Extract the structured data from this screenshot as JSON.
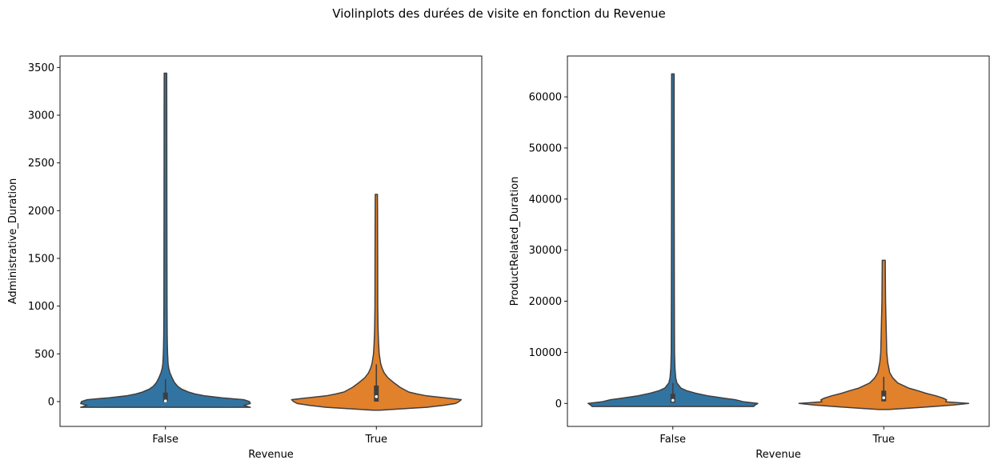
{
  "figure": {
    "suptitle": "Violinplots des durées de visite en fonction du Revenue"
  },
  "chart_data": [
    {
      "type": "violin",
      "xlabel": "Revenue",
      "ylabel": "Administrative_Duration",
      "categories": [
        "False",
        "True"
      ],
      "colors": [
        "#3274a1",
        "#e1812c"
      ],
      "ylim": [
        -260,
        3620
      ],
      "yticks": [
        0,
        500,
        1000,
        1500,
        2000,
        2500,
        3000,
        3500
      ],
      "violins": [
        {
          "category": "False",
          "min": -60,
          "max": 3440,
          "q1": 0,
          "median": 7,
          "q3": 94,
          "whisker_high": 235,
          "profile": [
            [
              -60,
              104
            ],
            [
              -40,
              96
            ],
            [
              -20,
              104
            ],
            [
              0,
              103
            ],
            [
              20,
              96
            ],
            [
              40,
              69
            ],
            [
              60,
              48
            ],
            [
              80,
              36
            ],
            [
              100,
              28
            ],
            [
              130,
              20
            ],
            [
              160,
              15
            ],
            [
              200,
              11
            ],
            [
              250,
              8
            ],
            [
              300,
              5.5
            ],
            [
              350,
              4
            ],
            [
              400,
              3.2
            ],
            [
              500,
              2.6
            ],
            [
              600,
              2.3
            ],
            [
              700,
              2.1
            ],
            [
              1000,
              1.9
            ],
            [
              2000,
              1.7
            ],
            [
              3000,
              1.6
            ],
            [
              3440,
              1.5
            ]
          ]
        },
        {
          "category": "True",
          "min": -90,
          "max": 2170,
          "q1": 0,
          "median": 52,
          "q3": 168,
          "whisker_high": 390,
          "profile": [
            [
              -90,
              5
            ],
            [
              -80,
              27
            ],
            [
              -60,
              70
            ],
            [
              -40,
              93
            ],
            [
              -20,
              110
            ],
            [
              0,
              115
            ],
            [
              20,
              118
            ],
            [
              40,
              95
            ],
            [
              60,
              70
            ],
            [
              80,
              56
            ],
            [
              100,
              45
            ],
            [
              150,
              33
            ],
            [
              200,
              24
            ],
            [
              250,
              16
            ],
            [
              300,
              11
            ],
            [
              350,
              8
            ],
            [
              400,
              6
            ],
            [
              500,
              4
            ],
            [
              600,
              3.2
            ],
            [
              700,
              2.6
            ],
            [
              800,
              2.3
            ],
            [
              1000,
              2
            ],
            [
              1500,
              1.8
            ],
            [
              2000,
              1.6
            ],
            [
              2170,
              1.5
            ]
          ]
        }
      ]
    },
    {
      "type": "violin",
      "xlabel": "Revenue",
      "ylabel": "ProductRelated_Duration",
      "categories": [
        "False",
        "True"
      ],
      "colors": [
        "#3274a1",
        "#e1812c"
      ],
      "ylim": [
        -4500,
        68000
      ],
      "yticks": [
        0,
        10000,
        20000,
        30000,
        40000,
        50000,
        60000
      ],
      "violins": [
        {
          "category": "False",
          "min": -600,
          "max": 64500,
          "q1": 150,
          "median": 610,
          "q3": 1900,
          "whisker_high": 4000,
          "profile": [
            [
              -600,
              100
            ],
            [
              -300,
              102
            ],
            [
              0,
              105
            ],
            [
              300,
              88
            ],
            [
              700,
              78
            ],
            [
              1000,
              64
            ],
            [
              1500,
              43
            ],
            [
              2000,
              28
            ],
            [
              2500,
              17
            ],
            [
              3000,
              10
            ],
            [
              4000,
              5
            ],
            [
              5000,
              3.5
            ],
            [
              7000,
              2.5
            ],
            [
              10000,
              2
            ],
            [
              20000,
              1.8
            ],
            [
              40000,
              1.6
            ],
            [
              64500,
              1.5
            ]
          ]
        },
        {
          "category": "True",
          "min": -1200,
          "max": 28000,
          "q1": 400,
          "median": 1100,
          "q3": 2500,
          "whisker_high": 5200,
          "profile": [
            [
              -1200,
              5
            ],
            [
              -900,
              28
            ],
            [
              -600,
              50
            ],
            [
              -300,
              70
            ],
            [
              0,
              85
            ],
            [
              300,
              62
            ],
            [
              700,
              63
            ],
            [
              1000,
              60
            ],
            [
              1500,
              52
            ],
            [
              2000,
              42
            ],
            [
              2500,
              34
            ],
            [
              3000,
              25
            ],
            [
              4000,
              14
            ],
            [
              5000,
              9
            ],
            [
              6000,
              6
            ],
            [
              8000,
              4
            ],
            [
              10000,
              3
            ],
            [
              14000,
              2.5
            ],
            [
              20000,
              1.8
            ],
            [
              28000,
              1.5
            ]
          ]
        }
      ]
    }
  ]
}
